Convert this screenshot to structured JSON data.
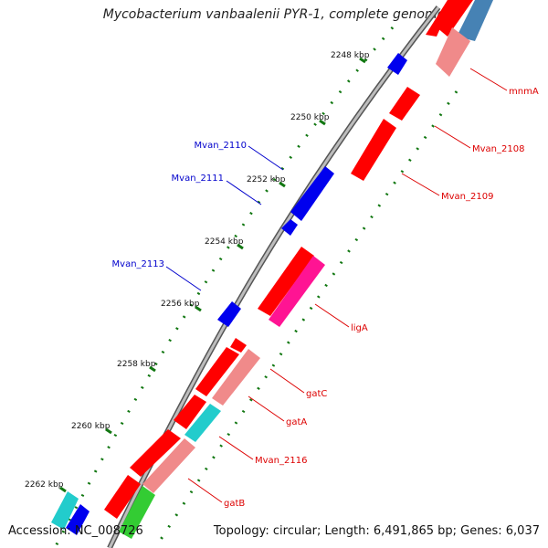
{
  "title": "Mycobacterium vanbaalenii PYR-1, complete genome",
  "footer": {
    "accession": "Accession: NC_008726",
    "summary": "Topology: circular; Length: 6,491,865 bp; Genes: 6,037"
  },
  "colors": {
    "forward_cds": "#ff0000",
    "forward_light": "#f08a8a",
    "forward_magenta": "#ff1493",
    "forward_green": "#33cc33",
    "forward_steel": "#4682b4",
    "reverse_cds": "#0000ee",
    "reverse_cyan": "#22cccc",
    "backbone": "#8c8c8c",
    "tick": "#117711",
    "forward_label": "#dd0000",
    "reverse_label": "#0000cc"
  },
  "kbp_ticks": [
    {
      "label": "2248 kbp"
    },
    {
      "label": "2250 kbp"
    },
    {
      "label": "2252 kbp"
    },
    {
      "label": "2254 kbp"
    },
    {
      "label": "2256 kbp"
    },
    {
      "label": "2258 kbp"
    },
    {
      "label": "2260 kbp"
    },
    {
      "label": "2262 kbp"
    }
  ],
  "forward_labels": [
    {
      "text": "mnmA"
    },
    {
      "text": "Mvan_2108"
    },
    {
      "text": "Mvan_2109"
    },
    {
      "text": "ligA"
    },
    {
      "text": "gatC"
    },
    {
      "text": "gatA"
    },
    {
      "text": "Mvan_2116"
    },
    {
      "text": "gatB"
    }
  ],
  "reverse_labels": [
    {
      "text": "Mvan_2110"
    },
    {
      "text": "Mvan_2111"
    },
    {
      "text": "Mvan_2113"
    }
  ]
}
